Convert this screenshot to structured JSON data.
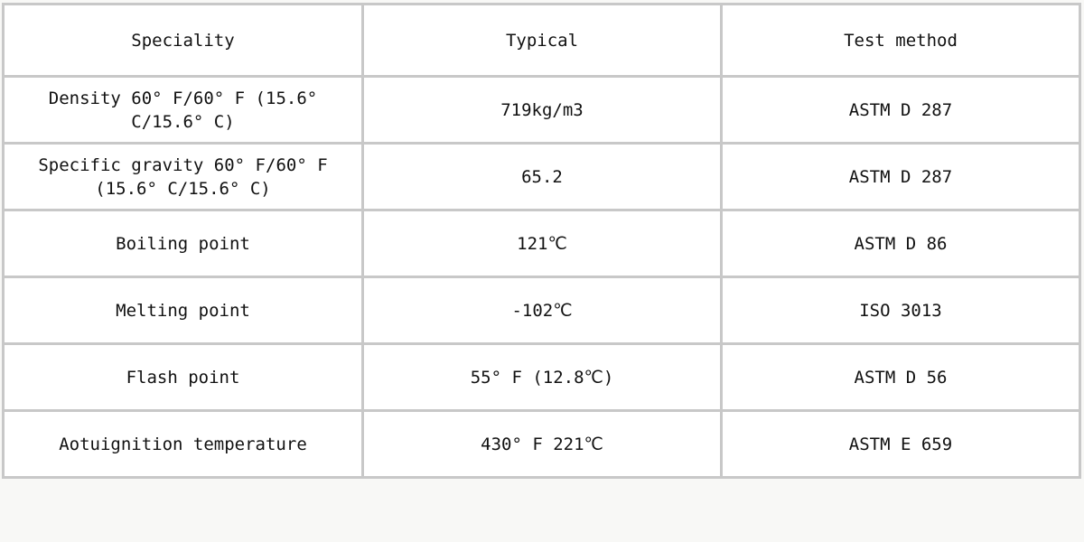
{
  "table": {
    "headers": [
      "Speciality",
      "Typical",
      "Test method"
    ],
    "rows": [
      [
        "Density 60° F/60° F (15.6° C/15.6° C)",
        "719kg/m3",
        "ASTM D 287"
      ],
      [
        "Specific gravity 60° F/60° F (15.6° C/15.6° C)",
        "65.2",
        "ASTM D 287"
      ],
      [
        "Boiling point",
        "121℃",
        "ASTM D 86"
      ],
      [
        "Melting point",
        "-102℃",
        "ISO 3013"
      ],
      [
        "Flash point",
        "55° F (12.8℃)",
        "ASTM D 56"
      ],
      [
        "Aotuignition temperature",
        "430° F 221℃",
        "ASTM E 659"
      ]
    ]
  },
  "colors": {
    "border": "#c8c8c8",
    "background": "#f8f8f6",
    "cell": "#ffffff"
  }
}
